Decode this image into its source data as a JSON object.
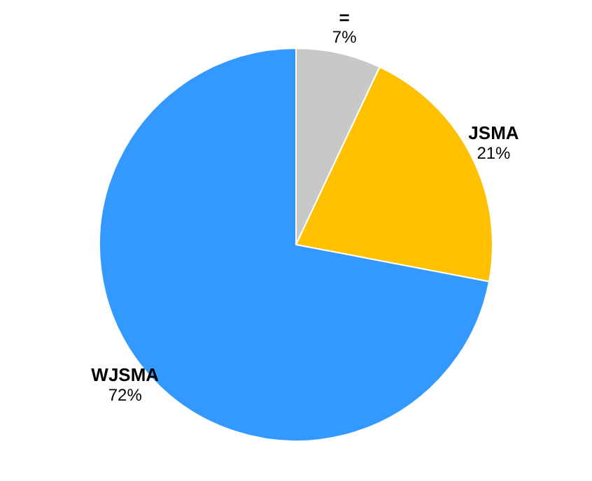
{
  "chart_data": {
    "type": "pie",
    "categories": [
      "=",
      "JSMA",
      "WJSMA"
    ],
    "values": [
      7,
      21,
      72
    ],
    "value_labels": [
      "7%",
      "21%",
      "72%"
    ],
    "colors": [
      "#c8c8c8",
      "#ffc000",
      "#3399ff"
    ],
    "legend": false
  }
}
